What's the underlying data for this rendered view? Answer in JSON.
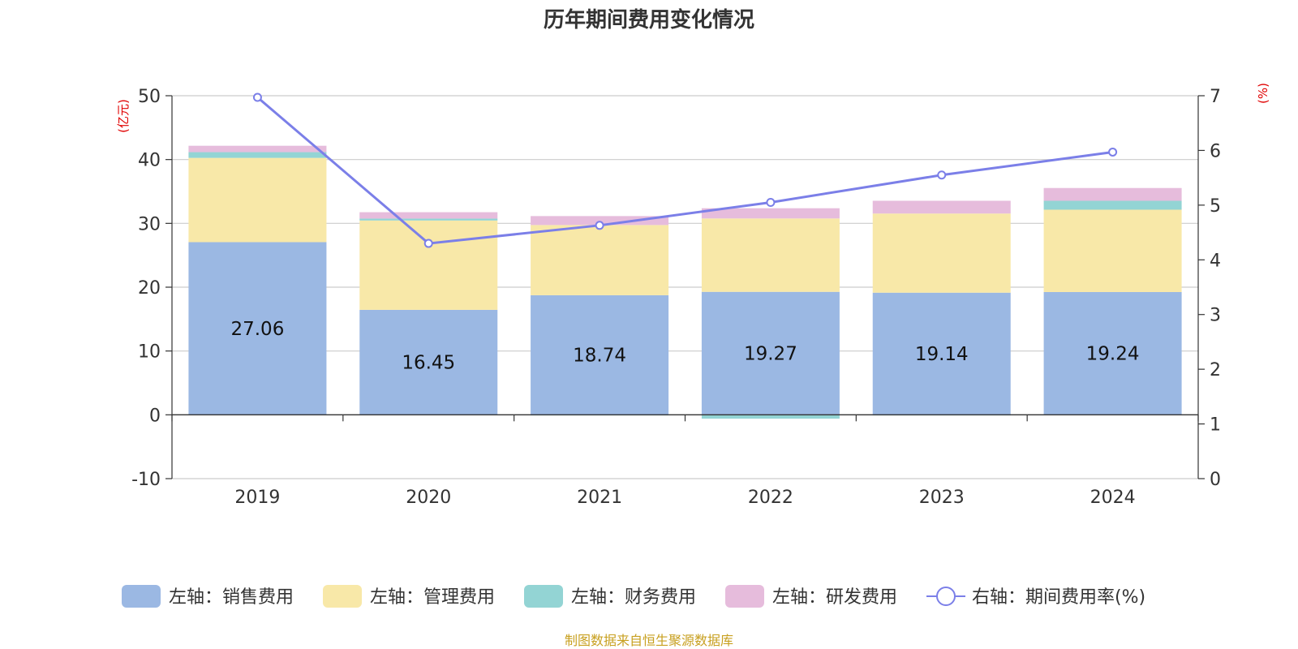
{
  "chart_data": {
    "type": "bar",
    "title": "历年期间费用变化情况",
    "categories": [
      "2019",
      "2020",
      "2021",
      "2022",
      "2023",
      "2024"
    ],
    "y_left": {
      "unit": "(亿元)",
      "ylim": [
        -10,
        50
      ],
      "ticks": [
        -10,
        0,
        10,
        20,
        30,
        40,
        50
      ]
    },
    "y_right": {
      "unit": "(%)",
      "ylim": [
        0,
        7
      ],
      "ticks": [
        0,
        1,
        2,
        3,
        4,
        5,
        6,
        7
      ]
    },
    "series": [
      {
        "name": "左轴：销售费用",
        "axis": "left",
        "type": "stacked-bar",
        "color": "#9bb8e3",
        "values": [
          27.06,
          16.45,
          18.74,
          19.27,
          19.14,
          19.24
        ],
        "labels": [
          "27.06",
          "16.45",
          "18.74",
          "19.27",
          "19.14",
          "19.24"
        ]
      },
      {
        "name": "左轴：管理费用",
        "axis": "left",
        "type": "stacked-bar",
        "color": "#f8e8a8",
        "values": [
          13.2,
          14.0,
          11.0,
          11.5,
          12.4,
          12.9
        ]
      },
      {
        "name": "左轴：财务费用",
        "axis": "left",
        "type": "stacked-bar",
        "color": "#93d4d4",
        "values": [
          0.9,
          0.3,
          -0.1,
          -0.6,
          -0.1,
          1.4
        ]
      },
      {
        "name": "左轴：研发费用",
        "axis": "left",
        "type": "stacked-bar",
        "color": "#e6bcdc",
        "values": [
          1.0,
          1.0,
          1.4,
          1.6,
          2.0,
          2.0
        ]
      },
      {
        "name": "右轴：期间费用率(%)",
        "axis": "right",
        "type": "line",
        "color": "#7b7fe8",
        "values": [
          6.97,
          4.3,
          4.63,
          5.05,
          5.55,
          5.97
        ]
      }
    ],
    "grid": true,
    "legend_position": "bottom"
  },
  "source": "制图数据来自恒生聚源数据库"
}
